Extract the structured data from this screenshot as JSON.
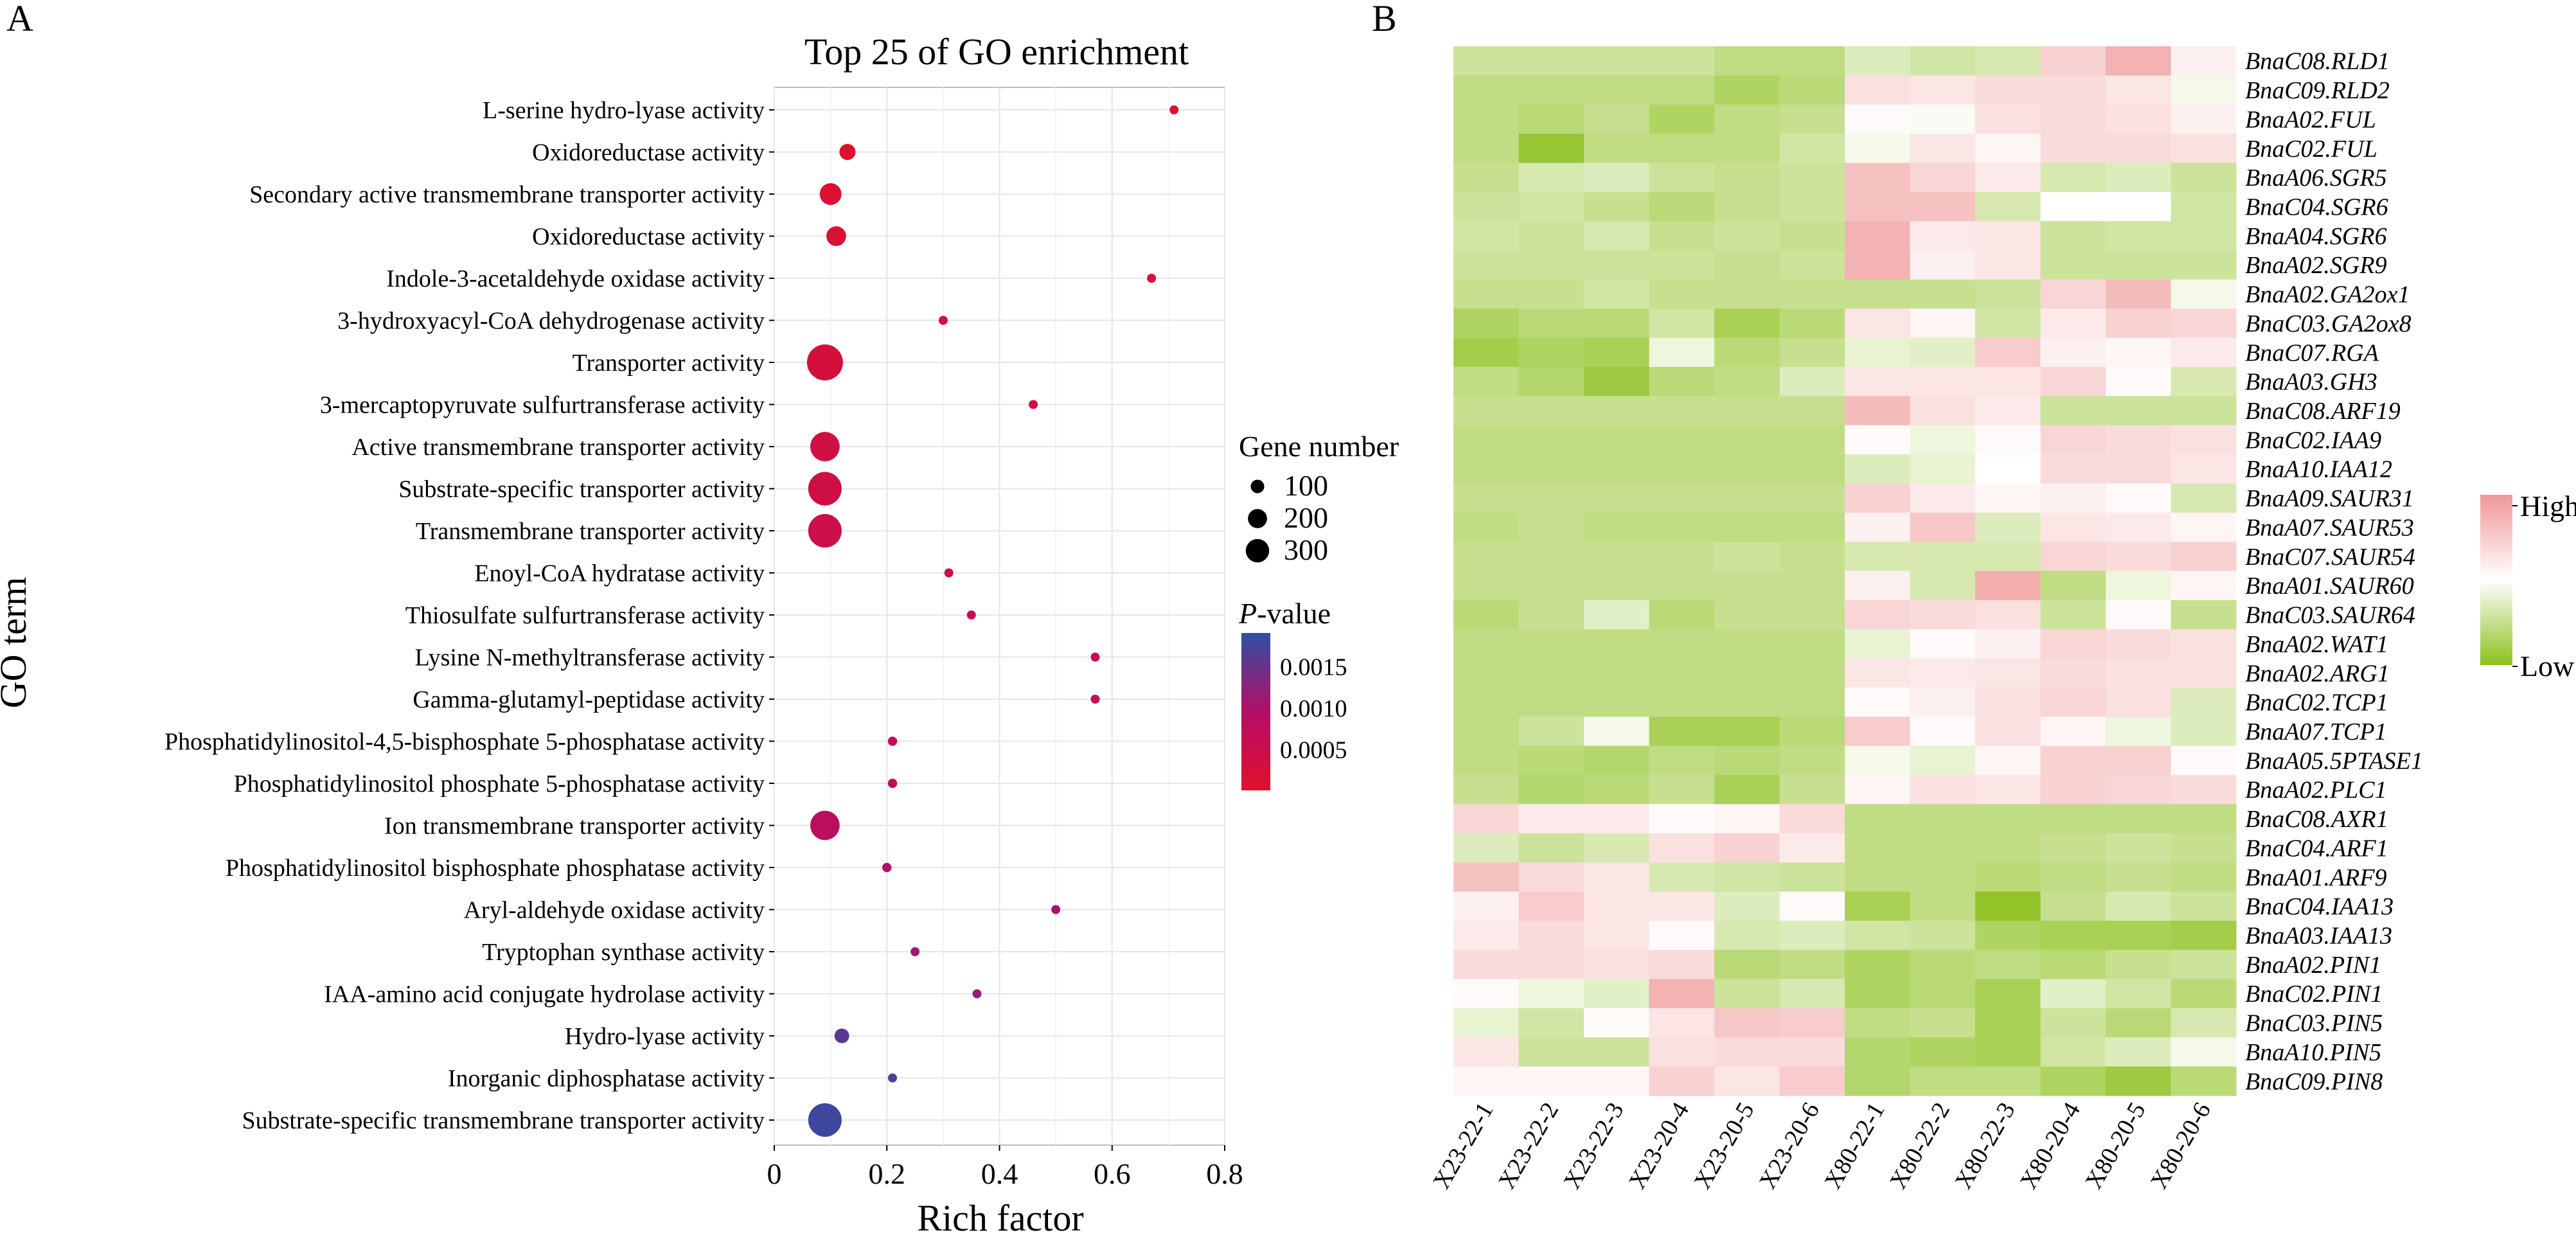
{
  "panels": {
    "a_letter": "A",
    "b_letter": "B"
  },
  "chart_data": [
    {
      "type": "scatter",
      "title": "Top 25 of GO enrichment",
      "xlabel": "Rich factor",
      "ylabel": "GO term",
      "xlim": [
        0,
        0.8
      ],
      "x_ticks": [
        "0",
        "0.2",
        "0.4",
        "0.6",
        "0.8"
      ],
      "grid": true,
      "size_legend": {
        "title": "Gene number",
        "values": [
          100,
          200,
          300
        ]
      },
      "color_legend": {
        "title_prefix": "P",
        "title_suffix": "-value",
        "ticks": [
          "0.0015",
          "0.0010",
          "0.0005"
        ],
        "range": [
          0,
          0.0019
        ],
        "colors": [
          "#e0102c",
          "#b40e68",
          "#2f4fa2"
        ]
      },
      "terms": [
        {
          "term": "L-serine hydro-lyase activity",
          "rich_factor": 0.71,
          "gene_number": 5,
          "p_value": 5e-05
        },
        {
          "term": "Oxidoreductase activity",
          "rich_factor": 0.13,
          "gene_number": 60,
          "p_value": 8e-05
        },
        {
          "term": "Secondary active transmembrane transporter activity",
          "rich_factor": 0.1,
          "gene_number": 110,
          "p_value": 0.0001
        },
        {
          "term": "Oxidoreductase activity",
          "rich_factor": 0.11,
          "gene_number": 90,
          "p_value": 0.00012
        },
        {
          "term": "Indole-3-acetaldehyde oxidase activity",
          "rich_factor": 0.67,
          "gene_number": 4,
          "p_value": 0.00015
        },
        {
          "term": "3-hydroxyacyl-CoA dehydrogenase activity",
          "rich_factor": 0.3,
          "gene_number": 12,
          "p_value": 0.0002
        },
        {
          "term": "Transporter activity",
          "rich_factor": 0.09,
          "gene_number": 300,
          "p_value": 0.00025
        },
        {
          "term": "3-mercaptopyruvate sulfurtransferase activity",
          "rich_factor": 0.46,
          "gene_number": 6,
          "p_value": 0.0003
        },
        {
          "term": "Active transmembrane transporter activity",
          "rich_factor": 0.09,
          "gene_number": 200,
          "p_value": 0.00035
        },
        {
          "term": "Substrate-specific transporter activity",
          "rich_factor": 0.09,
          "gene_number": 260,
          "p_value": 0.0004
        },
        {
          "term": "Transmembrane transporter activity",
          "rich_factor": 0.09,
          "gene_number": 260,
          "p_value": 0.00045
        },
        {
          "term": "Enoyl-CoA hydratase activity",
          "rich_factor": 0.31,
          "gene_number": 14,
          "p_value": 0.0005
        },
        {
          "term": "Thiosulfate sulfurtransferase activity",
          "rich_factor": 0.35,
          "gene_number": 12,
          "p_value": 0.00055
        },
        {
          "term": "Lysine N-methyltransferase activity",
          "rich_factor": 0.57,
          "gene_number": 5,
          "p_value": 0.0006
        },
        {
          "term": "Gamma-glutamyl-peptidase activity",
          "rich_factor": 0.57,
          "gene_number": 5,
          "p_value": 0.00065
        },
        {
          "term": "Phosphatidylinositol-4,5-bisphosphate 5-phosphatase activity",
          "rich_factor": 0.21,
          "gene_number": 20,
          "p_value": 0.0007
        },
        {
          "term": "Phosphatidylinositol phosphate 5-phosphatase activity",
          "rich_factor": 0.21,
          "gene_number": 20,
          "p_value": 0.00075
        },
        {
          "term": "Ion transmembrane transporter activity",
          "rich_factor": 0.09,
          "gene_number": 200,
          "p_value": 0.0008
        },
        {
          "term": "Phosphatidylinositol bisphosphate phosphatase activity",
          "rich_factor": 0.2,
          "gene_number": 20,
          "p_value": 0.00085
        },
        {
          "term": "Aryl-aldehyde oxidase activity",
          "rich_factor": 0.5,
          "gene_number": 6,
          "p_value": 0.001
        },
        {
          "term": "Tryptophan synthase activity",
          "rich_factor": 0.25,
          "gene_number": 16,
          "p_value": 0.0011
        },
        {
          "term": "IAA-amino acid conjugate hydrolase activity",
          "rich_factor": 0.36,
          "gene_number": 10,
          "p_value": 0.0012
        },
        {
          "term": "Hydro-lyase activity",
          "rich_factor": 0.12,
          "gene_number": 50,
          "p_value": 0.0016
        },
        {
          "term": "Inorganic diphosphatase activity",
          "rich_factor": 0.21,
          "gene_number": 15,
          "p_value": 0.0017
        },
        {
          "term": "Substrate-specific transmembrane transporter activity",
          "rich_factor": 0.09,
          "gene_number": 260,
          "p_value": 0.0018
        }
      ]
    },
    {
      "type": "heatmap",
      "columns": [
        "X23-22-1",
        "X23-22-2",
        "X23-22-3",
        "X23-20-4",
        "X23-20-5",
        "X23-20-6",
        "X80-22-1",
        "X80-22-2",
        "X80-22-3",
        "X80-20-4",
        "X80-20-5",
        "X80-20-6"
      ],
      "rows": [
        "BnaC08.RLD1",
        "BnaC09.RLD2",
        "BnaA02.FUL",
        "BnaC02.FUL",
        "BnaA06.SGR5",
        "BnaC04.SGR6",
        "BnaA04.SGR6",
        "BnaA02.SGR9",
        "BnaA02.GA2ox1",
        "BnaC03.GA2ox8",
        "BnaC07.RGA",
        "BnaA03.GH3",
        "BnaC08.ARF19",
        "BnaC02.IAA9",
        "BnaA10.IAA12",
        "BnaA09.SAUR31",
        "BnaA07.SAUR53",
        "BnaC07.SAUR54",
        "BnaA01.SAUR60",
        "BnaC03.SAUR64",
        "BnaA02.WAT1",
        "BnaA02.ARG1",
        "BnaC02.TCP1",
        "BnaA07.TCP1",
        "BnaA05.5PTASE1",
        "BnaA02.PLC1",
        "BnaC08.AXR1",
        "BnaC04.ARF1",
        "BnaA01.ARF9",
        "BnaC04.IAA13",
        "BnaA03.IAA13",
        "BnaA02.PIN1",
        "BnaC02.PIN1",
        "BnaC03.PIN5",
        "BnaA10.PIN5",
        "BnaC09.PIN8"
      ],
      "values": [
        [
          -0.45,
          -0.45,
          -0.45,
          -0.45,
          -0.55,
          -0.55,
          -0.3,
          -0.4,
          -0.35,
          0.45,
          0.75,
          0.15
        ],
        [
          -0.55,
          -0.55,
          -0.55,
          -0.55,
          -0.7,
          -0.6,
          0.3,
          0.25,
          0.35,
          0.35,
          0.25,
          -0.1
        ],
        [
          -0.55,
          -0.6,
          -0.5,
          -0.7,
          -0.55,
          -0.5,
          0.05,
          -0.05,
          0.3,
          0.35,
          0.3,
          0.15
        ],
        [
          -0.55,
          -0.9,
          -0.55,
          -0.55,
          -0.55,
          -0.4,
          -0.1,
          0.25,
          0.1,
          0.35,
          0.35,
          0.3
        ],
        [
          -0.5,
          -0.35,
          -0.3,
          -0.45,
          -0.5,
          -0.45,
          0.6,
          0.4,
          0.2,
          -0.35,
          -0.3,
          -0.45
        ],
        [
          -0.45,
          -0.4,
          -0.5,
          -0.6,
          -0.5,
          -0.45,
          0.6,
          0.6,
          -0.35,
          0,
          0,
          -0.4
        ],
        [
          -0.4,
          -0.45,
          -0.35,
          -0.5,
          -0.45,
          -0.5,
          0.75,
          0.2,
          0.25,
          -0.45,
          -0.4,
          -0.4
        ],
        [
          -0.45,
          -0.45,
          -0.45,
          -0.45,
          -0.5,
          -0.45,
          0.75,
          0.15,
          0.25,
          -0.45,
          -0.45,
          -0.45
        ],
        [
          -0.5,
          -0.5,
          -0.4,
          -0.5,
          -0.5,
          -0.5,
          -0.5,
          -0.5,
          -0.45,
          0.4,
          0.65,
          -0.1
        ],
        [
          -0.7,
          -0.6,
          -0.6,
          -0.4,
          -0.75,
          -0.6,
          0.25,
          0.1,
          -0.4,
          0.2,
          0.45,
          0.4
        ],
        [
          -0.8,
          -0.7,
          -0.75,
          -0.15,
          -0.6,
          -0.5,
          -0.2,
          -0.25,
          0.5,
          0.15,
          0.1,
          0.2
        ],
        [
          -0.55,
          -0.65,
          -0.85,
          -0.6,
          -0.55,
          -0.3,
          0.25,
          0.25,
          0.25,
          0.4,
          0.05,
          -0.35
        ],
        [
          -0.5,
          -0.5,
          -0.5,
          -0.5,
          -0.5,
          -0.5,
          0.65,
          0.3,
          0.2,
          -0.45,
          -0.45,
          -0.45
        ],
        [
          -0.55,
          -0.55,
          -0.55,
          -0.55,
          -0.55,
          -0.55,
          0.05,
          -0.15,
          0.05,
          0.4,
          0.35,
          0.3
        ],
        [
          -0.55,
          -0.55,
          -0.55,
          -0.55,
          -0.55,
          -0.55,
          -0.3,
          -0.2,
          0,
          0.35,
          0.35,
          0.25
        ],
        [
          -0.5,
          -0.5,
          -0.5,
          -0.5,
          -0.5,
          -0.5,
          0.45,
          0.2,
          0.1,
          0.15,
          0.05,
          -0.35
        ],
        [
          -0.55,
          -0.5,
          -0.55,
          -0.55,
          -0.55,
          -0.55,
          0.15,
          0.55,
          -0.3,
          0.25,
          0.2,
          0.1
        ],
        [
          -0.5,
          -0.5,
          -0.5,
          -0.5,
          -0.45,
          -0.5,
          -0.35,
          -0.35,
          -0.35,
          0.4,
          0.35,
          0.45
        ],
        [
          -0.5,
          -0.5,
          -0.5,
          -0.5,
          -0.5,
          -0.5,
          0.15,
          -0.35,
          0.8,
          -0.55,
          -0.15,
          0.1
        ],
        [
          -0.6,
          -0.5,
          -0.25,
          -0.6,
          -0.5,
          -0.5,
          0.4,
          0.35,
          0.3,
          -0.45,
          0.05,
          -0.5
        ],
        [
          -0.55,
          -0.55,
          -0.55,
          -0.55,
          -0.55,
          -0.55,
          -0.2,
          0.05,
          0.15,
          0.4,
          0.35,
          0.3
        ],
        [
          -0.55,
          -0.55,
          -0.55,
          -0.55,
          -0.55,
          -0.55,
          0.25,
          0.2,
          0.25,
          0.35,
          0.3,
          0.3
        ],
        [
          -0.55,
          -0.55,
          -0.55,
          -0.55,
          -0.55,
          -0.55,
          0.05,
          0.15,
          0.3,
          0.4,
          0.3,
          -0.3
        ],
        [
          -0.55,
          -0.45,
          -0.1,
          -0.75,
          -0.75,
          -0.6,
          0.5,
          0.05,
          0.3,
          0.1,
          -0.15,
          -0.3
        ],
        [
          -0.55,
          -0.6,
          -0.65,
          -0.55,
          -0.6,
          -0.55,
          -0.1,
          -0.2,
          0.1,
          0.45,
          0.45,
          0.05
        ],
        [
          -0.5,
          -0.65,
          -0.6,
          -0.5,
          -0.75,
          -0.5,
          0.1,
          0.3,
          0.25,
          0.45,
          0.4,
          0.35
        ],
        [
          0.4,
          0.2,
          0.2,
          0.05,
          0.1,
          0.35,
          -0.55,
          -0.55,
          -0.55,
          -0.55,
          -0.55,
          -0.55
        ],
        [
          -0.3,
          -0.45,
          -0.35,
          0.3,
          0.45,
          0.2,
          -0.55,
          -0.55,
          -0.55,
          -0.5,
          -0.45,
          -0.5
        ],
        [
          0.6,
          0.35,
          0.25,
          -0.35,
          -0.4,
          -0.45,
          -0.55,
          -0.55,
          -0.6,
          -0.55,
          -0.5,
          -0.55
        ],
        [
          0.15,
          0.5,
          0.25,
          0.25,
          -0.3,
          0.05,
          -0.75,
          -0.55,
          -0.95,
          -0.5,
          -0.35,
          -0.45
        ],
        [
          0.2,
          0.35,
          0.25,
          0.05,
          -0.35,
          -0.3,
          -0.4,
          -0.45,
          -0.7,
          -0.75,
          -0.75,
          -0.8
        ],
        [
          0.35,
          0.35,
          0.3,
          0.35,
          -0.6,
          -0.55,
          -0.7,
          -0.6,
          -0.55,
          -0.6,
          -0.5,
          -0.45
        ],
        [
          0.05,
          -0.15,
          -0.25,
          0.75,
          -0.45,
          -0.35,
          -0.7,
          -0.6,
          -0.75,
          -0.25,
          -0.4,
          -0.6
        ],
        [
          -0.2,
          -0.4,
          0.05,
          0.25,
          0.55,
          0.5,
          -0.55,
          -0.5,
          -0.75,
          -0.45,
          -0.6,
          -0.35
        ],
        [
          0.25,
          -0.45,
          -0.45,
          0.3,
          0.35,
          0.35,
          -0.65,
          -0.7,
          -0.75,
          -0.4,
          -0.3,
          -0.1
        ],
        [
          0.1,
          0.1,
          0.1,
          0.45,
          0.25,
          0.5,
          -0.65,
          -0.55,
          -0.55,
          -0.7,
          -0.85,
          -0.6
        ]
      ],
      "color_legend": {
        "high_label": "High",
        "low_label": "Low",
        "high_color": "#f09898",
        "mid_color": "#ffffff",
        "low_color": "#8cc11e"
      }
    }
  ]
}
